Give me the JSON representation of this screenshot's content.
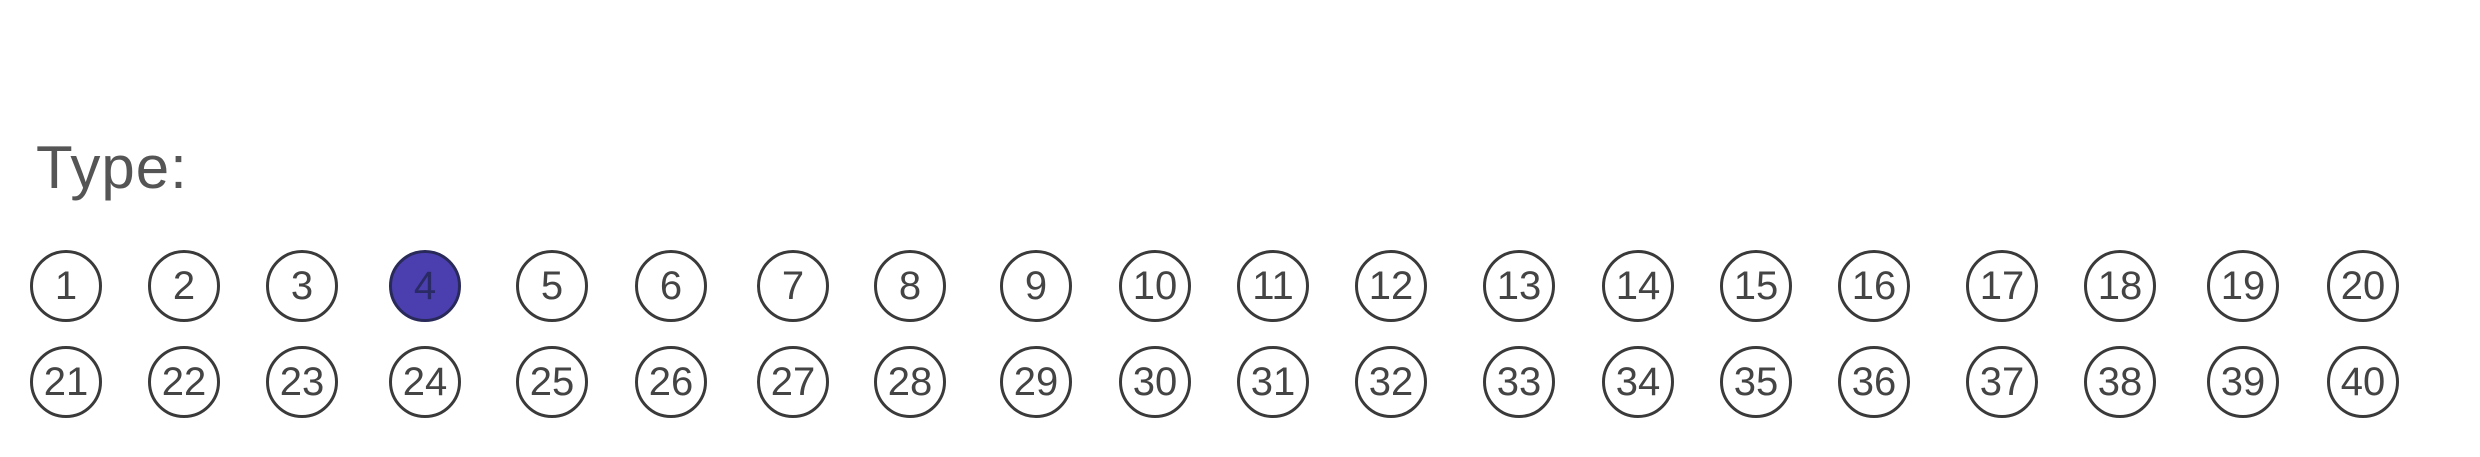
{
  "form": {
    "label": "Type:",
    "selected": 4,
    "fill_color": "#4b3fb0",
    "bubbles": [
      "1",
      "2",
      "3",
      "4",
      "5",
      "6",
      "7",
      "8",
      "9",
      "10",
      "11",
      "12",
      "13",
      "14",
      "15",
      "16",
      "17",
      "18",
      "19",
      "20",
      "21",
      "22",
      "23",
      "24",
      "25",
      "26",
      "27",
      "28",
      "29",
      "30",
      "31",
      "32",
      "33",
      "34",
      "35",
      "36",
      "37",
      "38",
      "39",
      "40"
    ]
  }
}
